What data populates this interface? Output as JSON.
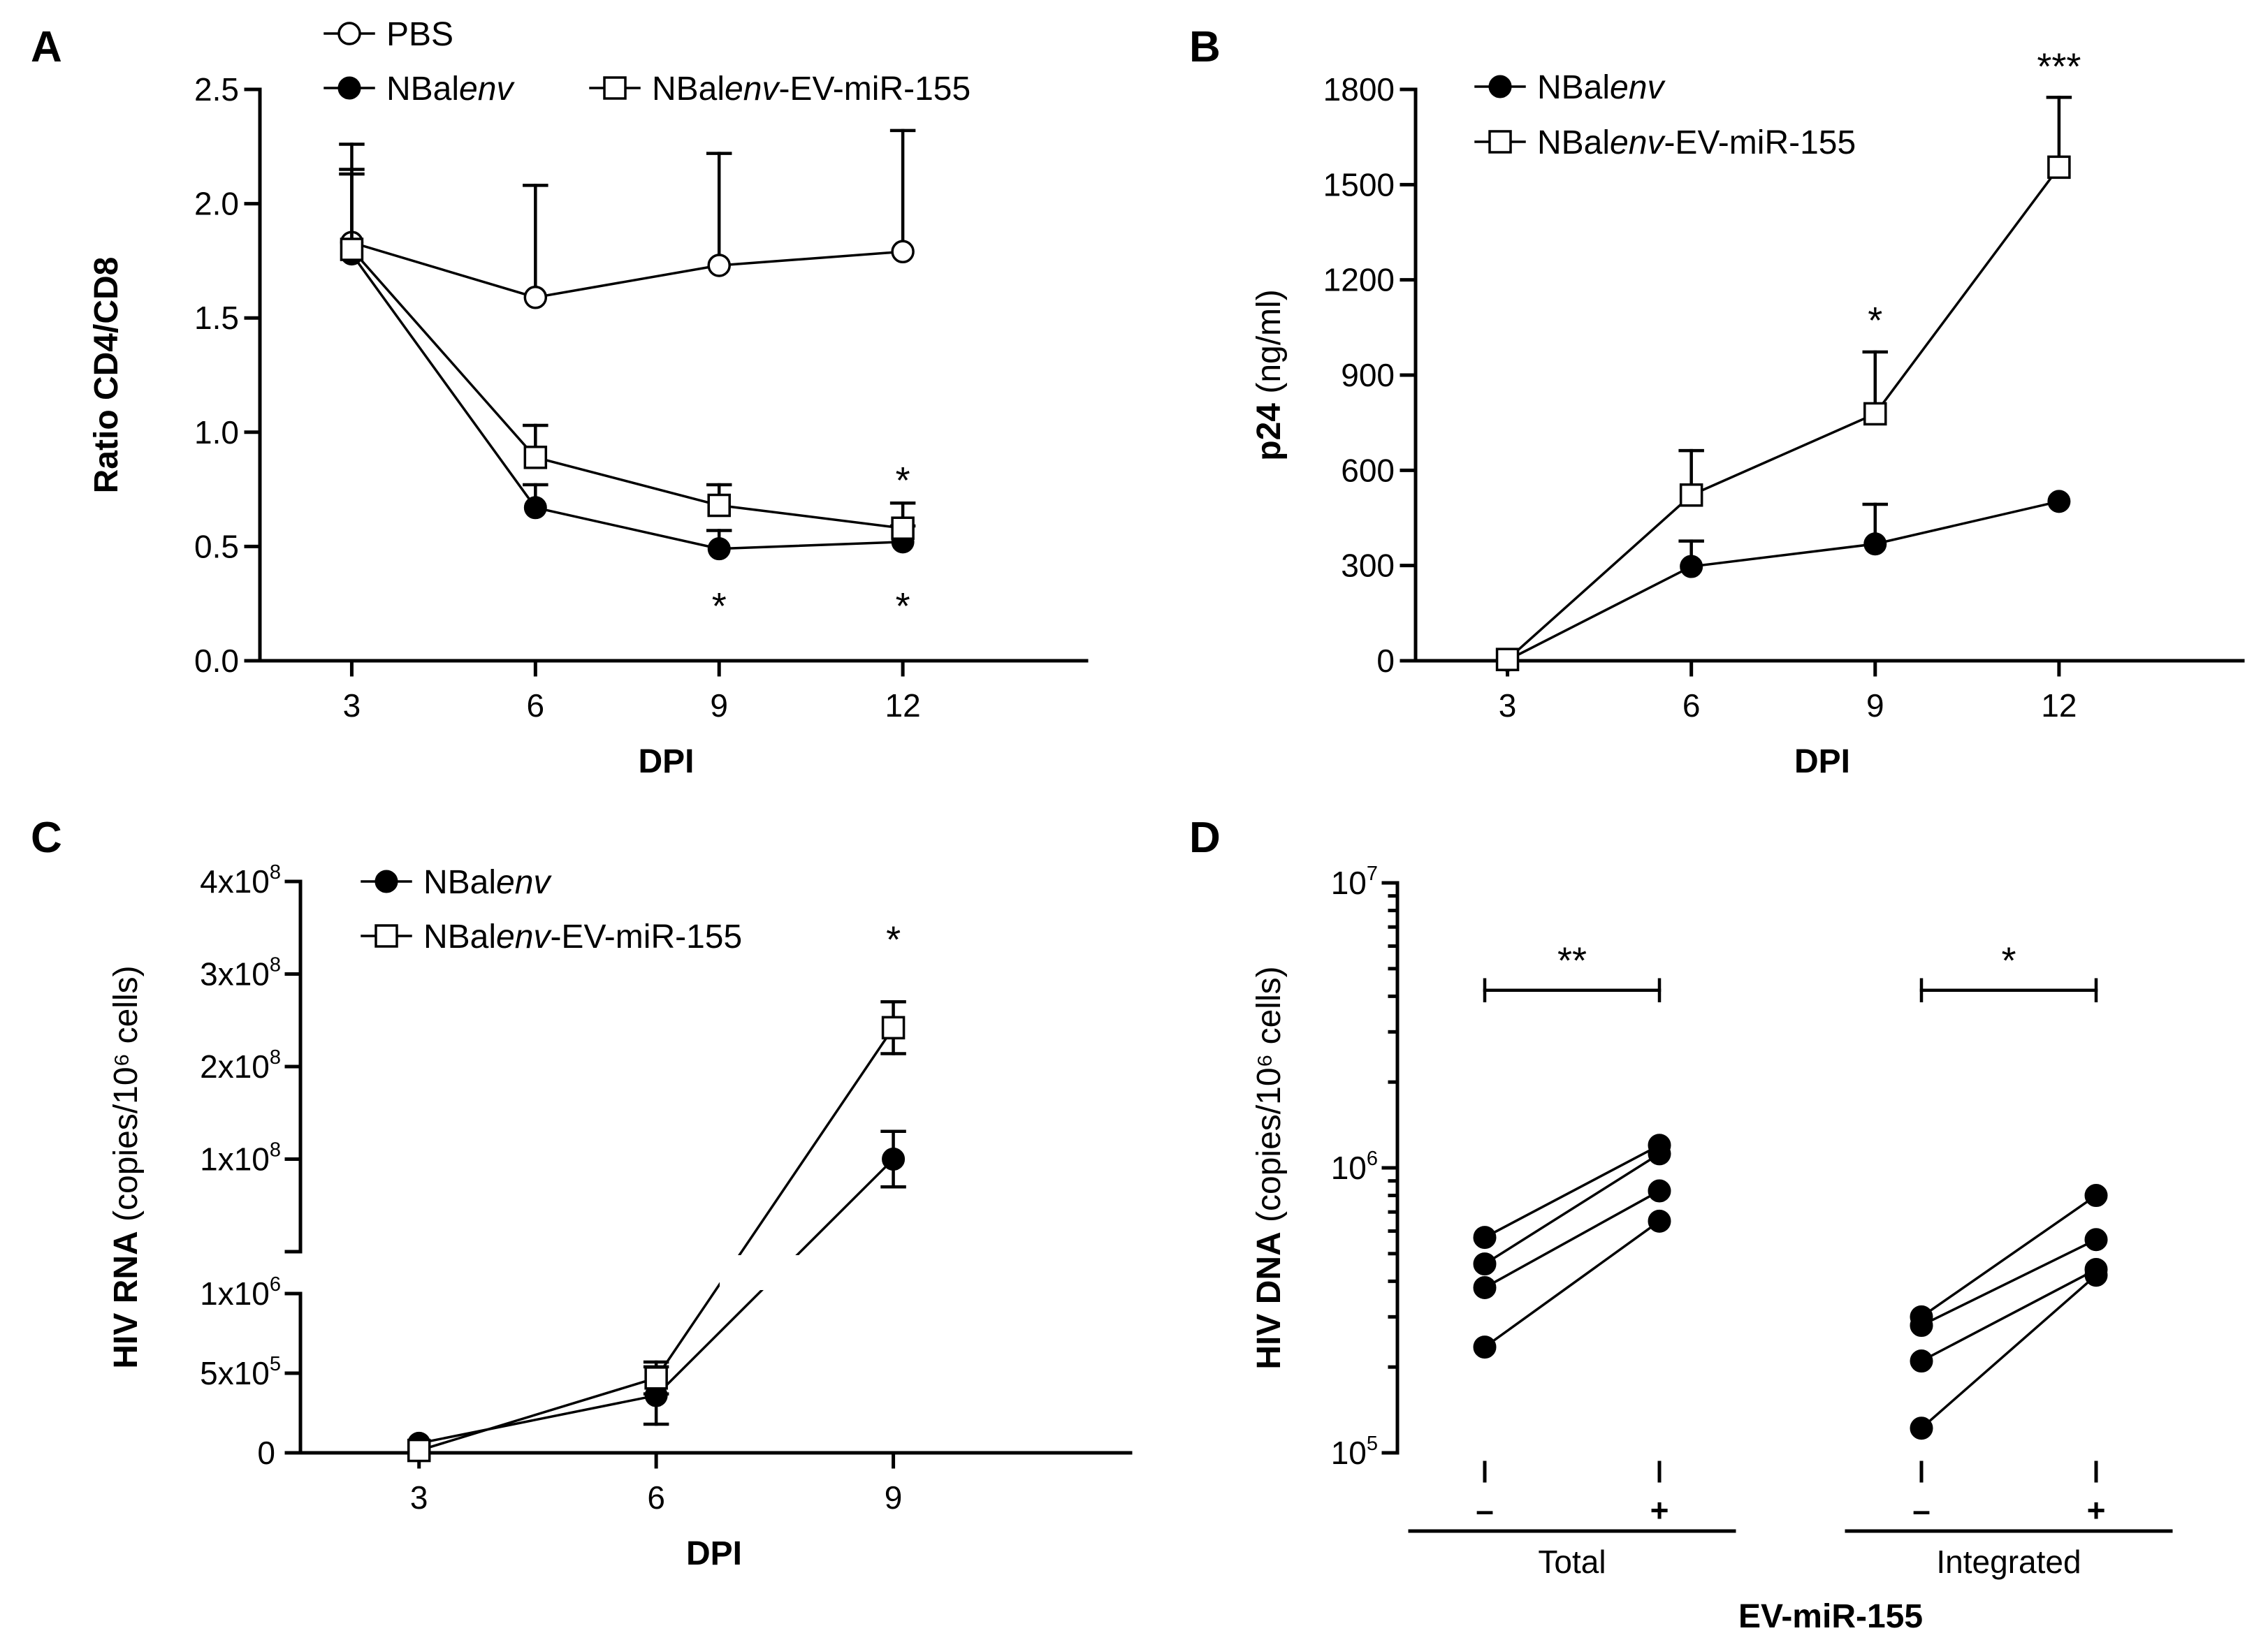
{
  "chart_data": [
    {
      "panel": "A",
      "type": "line",
      "xlabel": "DPI",
      "ylabel": "Ratio CD4/CD8",
      "x": [
        3,
        6,
        9,
        12
      ],
      "xlim": [
        1.5,
        15
      ],
      "ylim": [
        0,
        2.5
      ],
      "yticks": [
        "0.0",
        "0.5",
        "1.0",
        "1.5",
        "2.0",
        "2.5"
      ],
      "xticks": [
        "3",
        "6",
        "9",
        "12"
      ],
      "series": [
        {
          "name": "PBS",
          "marker": "open-circle",
          "values": [
            1.83,
            1.59,
            1.73,
            1.79
          ],
          "errors": [
            0.43,
            0.49,
            0.49,
            0.53
          ]
        },
        {
          "name": "NBalenv",
          "name_prefix": "NBal",
          "name_italic": "env",
          "name_suffix": "",
          "marker": "filled-circle",
          "values": [
            1.78,
            0.67,
            0.49,
            0.52
          ],
          "errors": [
            0.35,
            0.1,
            0.08,
            0.07
          ]
        },
        {
          "name": "NBalenv-EV-miR-155",
          "name_prefix": "NBal",
          "name_italic": "env",
          "name_suffix": "-EV-miR-155",
          "marker": "open-square",
          "values": [
            1.8,
            0.89,
            0.68,
            0.58
          ],
          "errors": [
            0.35,
            0.14,
            0.09,
            0.11
          ]
        }
      ],
      "annotations": [
        {
          "text": "*",
          "x": 9,
          "y": 0.25
        },
        {
          "text": "*",
          "x": 12,
          "y": 0.25
        },
        {
          "text": "*",
          "x": 12,
          "y": 0.8
        }
      ]
    },
    {
      "panel": "B",
      "type": "line",
      "xlabel": "DPI",
      "ylabel": "p24",
      "ylabel_sub": "(ng/ml)",
      "x": [
        3,
        6,
        9,
        12
      ],
      "xlim": [
        1.5,
        15
      ],
      "ylim": [
        0,
        1800
      ],
      "yticks": [
        "0",
        "300",
        "600",
        "900",
        "1200",
        "1500",
        "1800"
      ],
      "xticks": [
        "3",
        "6",
        "9",
        "12"
      ],
      "series": [
        {
          "name": "NBalenv",
          "name_prefix": "NBal",
          "name_italic": "env",
          "name_suffix": "",
          "marker": "filled-circle",
          "values": [
            2,
            297,
            368,
            502
          ],
          "errors": [
            0,
            80,
            125,
            0
          ]
        },
        {
          "name": "NBalenv-EV-miR-155",
          "name_prefix": "NBal",
          "name_italic": "env",
          "name_suffix": "-EV-miR-155",
          "marker": "open-square",
          "values": [
            4,
            522,
            778,
            1555
          ],
          "errors": [
            0,
            140,
            195,
            220
          ]
        }
      ],
      "annotations": [
        {
          "text": "*",
          "x": 9,
          "y": 1080
        },
        {
          "text": "***",
          "x": 12,
          "y": 1880
        }
      ]
    },
    {
      "panel": "C",
      "type": "line",
      "xlabel": "DPI",
      "ylabel": "HIV RNA",
      "ylabel_sub": "(copies/10⁶ cells)",
      "x": [
        3,
        6,
        9
      ],
      "xlim": [
        1.5,
        12
      ],
      "y_break": {
        "lower_range": [
          0,
          1000000
        ],
        "upper_range": [
          0,
          400000000
        ]
      },
      "yticks_lower": [
        {
          "value": 0,
          "base": "0",
          "exp": ""
        },
        {
          "value": 500000,
          "base": "5x10",
          "exp": "5"
        },
        {
          "value": 1000000,
          "base": "1x10",
          "exp": "6"
        }
      ],
      "yticks_upper": [
        {
          "value": 100000000,
          "base": "1x10",
          "exp": "8"
        },
        {
          "value": 200000000,
          "base": "2x10",
          "exp": "8"
        },
        {
          "value": 300000000,
          "base": "3x10",
          "exp": "8"
        },
        {
          "value": 400000000,
          "base": "4x10",
          "exp": "8"
        }
      ],
      "xticks": [
        "3",
        "6",
        "9"
      ],
      "series": [
        {
          "name": "NBalenv",
          "name_prefix": "NBal",
          "name_italic": "env",
          "name_suffix": "",
          "marker": "filled-circle",
          "values": [
            60000,
            360000,
            100000000
          ],
          "errors": [
            0,
            180000,
            30000000
          ]
        },
        {
          "name": "NBalenv-EV-miR-155",
          "name_prefix": "NBal",
          "name_italic": "env",
          "name_suffix": "-EV-miR-155",
          "marker": "open-square",
          "values": [
            15000,
            470000,
            242000000
          ],
          "errors": [
            0,
            100000,
            28000000
          ]
        }
      ],
      "annotations": [
        {
          "text": "*",
          "x": 9,
          "y": 340000000
        }
      ]
    },
    {
      "panel": "D",
      "type": "scatter",
      "ylabel": "HIV DNA",
      "ylabel_sub": "(copies/10⁶ cells)",
      "xlabel": "EV-miR-155",
      "yscale": "log",
      "ylim": [
        100000,
        10000000
      ],
      "yticks": [
        {
          "value": 100000,
          "base": "10",
          "exp": "5"
        },
        {
          "value": 1000000,
          "base": "10",
          "exp": "6"
        },
        {
          "value": 10000000,
          "base": "10",
          "exp": "7"
        }
      ],
      "x_positions": [
        1,
        2,
        3.5,
        4.5
      ],
      "xlim": [
        0.5,
        5.3
      ],
      "x_tick_labels": [
        "–",
        "+",
        "–",
        "+"
      ],
      "groups": [
        "Total",
        "Integrated"
      ],
      "pairs": [
        {
          "group": "Total",
          "minus": 570000,
          "plus": 1200000
        },
        {
          "group": "Total",
          "minus": 460000,
          "plus": 1120000
        },
        {
          "group": "Total",
          "minus": 380000,
          "plus": 830000
        },
        {
          "group": "Total",
          "minus": 235000,
          "plus": 650000
        },
        {
          "group": "Integrated",
          "minus": 300000,
          "plus": 800000
        },
        {
          "group": "Integrated",
          "minus": 280000,
          "plus": 560000
        },
        {
          "group": "Integrated",
          "minus": 210000,
          "plus": 440000
        },
        {
          "group": "Integrated",
          "minus": 122000,
          "plus": 420000
        }
      ],
      "significance": [
        {
          "group": "Total",
          "text": "**",
          "y": 4200000
        },
        {
          "group": "Integrated",
          "text": "*",
          "y": 4200000
        }
      ]
    }
  ]
}
